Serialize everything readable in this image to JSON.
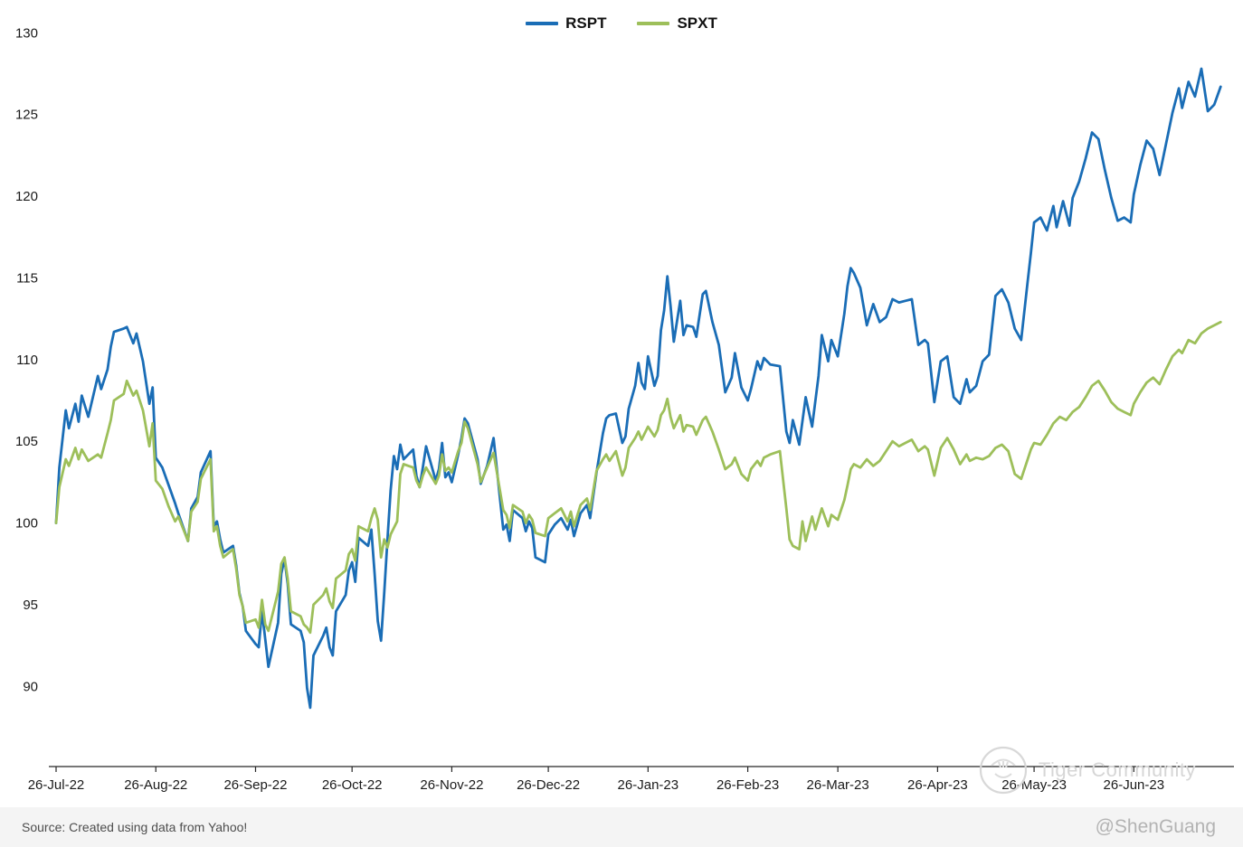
{
  "watermark": {
    "brand": "Tiger Community",
    "handle": "@ShenGuang"
  },
  "footer": {
    "source": "Source: Created using data from Yahoo!"
  },
  "chart_data": {
    "type": "line",
    "title": "",
    "xlabel": "",
    "ylabel": "",
    "grid": false,
    "legend_position": "top-center",
    "x_axis": {
      "unit": "days since 26-Jul-2022",
      "domain": [
        0,
        365
      ],
      "tick_days": [
        0,
        31,
        62,
        92,
        123,
        153,
        184,
        215,
        243,
        274,
        304,
        335
      ],
      "tick_labels": [
        "26-Jul-22",
        "26-Aug-22",
        "26-Sep-22",
        "26-Oct-22",
        "26-Nov-22",
        "26-Dec-22",
        "26-Jan-23",
        "26-Feb-23",
        "26-Mar-23",
        "26-Apr-23",
        "26-May-23",
        "26-Jun-23"
      ]
    },
    "y_axis": {
      "range": [
        85.1,
        130.9
      ],
      "ticks": [
        90,
        95,
        100,
        105,
        110,
        115,
        120,
        125,
        130
      ]
    },
    "series": [
      {
        "name": "RSPT",
        "color": "#1a6db6",
        "x": [
          0,
          1,
          3,
          4,
          6,
          7,
          8,
          10,
          13,
          14,
          16,
          17,
          18,
          21,
          22,
          24,
          25,
          27,
          29,
          30,
          31,
          33,
          35,
          37,
          38,
          41,
          42,
          44,
          45,
          48,
          49,
          50,
          51,
          52,
          55,
          56,
          57,
          58,
          59,
          62,
          63,
          64,
          65,
          66,
          69,
          70,
          71,
          72,
          73,
          76,
          77,
          78,
          79,
          80,
          83,
          84,
          85,
          86,
          87,
          90,
          91,
          92,
          93,
          94,
          97,
          98,
          99,
          100,
          101,
          102,
          103,
          104,
          105,
          106,
          107,
          108,
          111,
          112,
          113,
          114,
          115,
          118,
          119,
          120,
          121,
          122,
          123,
          125,
          126,
          127,
          128,
          131,
          132,
          134,
          136,
          139,
          140,
          141,
          142,
          145,
          146,
          147,
          148,
          149,
          152,
          153,
          155,
          157,
          159,
          160,
          161,
          163,
          165,
          166,
          168,
          170,
          171,
          172,
          174,
          176,
          177,
          178,
          180,
          181,
          182,
          183,
          184,
          186,
          187,
          188,
          189,
          190,
          191,
          192,
          194,
          195,
          196,
          198,
          199,
          201,
          202,
          204,
          206,
          208,
          210,
          211,
          213,
          215,
          216,
          218,
          219,
          220,
          222,
          225,
          227,
          228,
          229,
          231,
          233,
          235,
          237,
          238,
          240,
          241,
          243,
          245,
          246,
          247,
          248,
          250,
          252,
          254,
          256,
          258,
          260,
          262,
          264,
          266,
          268,
          270,
          271,
          273,
          275,
          277,
          279,
          281,
          283,
          284,
          286,
          288,
          290,
          292,
          294,
          296,
          298,
          300,
          302,
          303,
          304,
          306,
          308,
          310,
          311,
          313,
          315,
          316,
          318,
          320,
          322,
          324,
          326,
          328,
          330,
          332,
          334,
          335,
          337,
          339,
          341,
          343,
          345,
          347,
          349,
          350,
          352,
          354,
          356,
          358,
          360,
          362
        ],
        "values": [
          100.0,
          103.4,
          106.9,
          105.8,
          107.3,
          106.2,
          107.8,
          106.5,
          109.0,
          108.2,
          109.4,
          110.8,
          111.7,
          111.9,
          112.0,
          111.0,
          111.6,
          109.9,
          107.3,
          108.3,
          104.0,
          103.4,
          102.3,
          101.2,
          100.6,
          98.9,
          100.9,
          101.6,
          103.1,
          104.4,
          99.8,
          100.1,
          99.0,
          98.2,
          98.6,
          97.4,
          95.7,
          94.9,
          93.4,
          92.6,
          92.4,
          94.6,
          92.9,
          91.2,
          93.9,
          96.9,
          97.8,
          96.3,
          93.8,
          93.4,
          92.7,
          89.9,
          88.7,
          91.9,
          93.1,
          93.6,
          92.4,
          91.9,
          94.6,
          95.6,
          97.1,
          97.6,
          96.4,
          99.1,
          98.6,
          99.6,
          96.9,
          94.0,
          92.8,
          95.7,
          99.0,
          102.0,
          104.1,
          103.3,
          104.8,
          103.9,
          104.5,
          102.9,
          102.2,
          103.4,
          104.7,
          102.6,
          103.3,
          104.9,
          102.8,
          103.1,
          102.5,
          104.2,
          105.2,
          106.4,
          106.1,
          103.9,
          102.4,
          103.5,
          105.2,
          99.6,
          99.9,
          98.9,
          100.8,
          100.3,
          99.5,
          100.1,
          99.7,
          97.9,
          97.6,
          99.3,
          99.9,
          100.3,
          99.6,
          100.2,
          99.2,
          100.6,
          101.1,
          100.3,
          103.1,
          105.5,
          106.4,
          106.6,
          106.7,
          104.9,
          105.3,
          107.0,
          108.4,
          109.8,
          108.6,
          108.2,
          110.2,
          108.4,
          109.0,
          111.8,
          113.0,
          115.1,
          113.3,
          111.1,
          113.6,
          111.5,
          112.1,
          112.0,
          111.4,
          114.0,
          114.2,
          112.3,
          110.9,
          108.0,
          108.9,
          110.4,
          108.3,
          107.5,
          108.2,
          109.9,
          109.4,
          110.1,
          109.7,
          109.6,
          105.6,
          104.9,
          106.3,
          104.8,
          107.7,
          105.9,
          109.0,
          111.5,
          109.9,
          111.2,
          110.2,
          112.8,
          114.5,
          115.6,
          115.3,
          114.4,
          112.1,
          113.4,
          112.3,
          112.6,
          113.7,
          113.5,
          113.6,
          113.7,
          110.9,
          111.2,
          111.0,
          107.4,
          109.9,
          110.2,
          107.7,
          107.3,
          108.8,
          108.0,
          108.4,
          109.9,
          110.3,
          113.9,
          114.3,
          113.5,
          111.9,
          111.2,
          114.8,
          116.5,
          118.4,
          118.7,
          117.9,
          119.4,
          118.1,
          119.7,
          118.2,
          119.9,
          120.9,
          122.3,
          123.9,
          123.5,
          121.6,
          119.9,
          118.5,
          118.7,
          118.4,
          120.1,
          121.9,
          123.4,
          122.9,
          121.3,
          123.2,
          125.1,
          126.6,
          125.4,
          127.0,
          126.1,
          127.8,
          125.2,
          125.6,
          126.7
        ]
      },
      {
        "name": "SPXT",
        "color": "#9dbf5a",
        "x": [
          0,
          1,
          3,
          4,
          6,
          7,
          8,
          10,
          13,
          14,
          16,
          17,
          18,
          21,
          22,
          24,
          25,
          27,
          29,
          30,
          31,
          33,
          35,
          37,
          38,
          41,
          42,
          44,
          45,
          48,
          49,
          50,
          51,
          52,
          55,
          56,
          57,
          58,
          59,
          62,
          63,
          64,
          65,
          66,
          69,
          70,
          71,
          72,
          73,
          76,
          77,
          78,
          79,
          80,
          83,
          84,
          85,
          86,
          87,
          90,
          91,
          92,
          93,
          94,
          97,
          98,
          99,
          100,
          101,
          102,
          103,
          104,
          106,
          107,
          108,
          111,
          112,
          113,
          114,
          115,
          118,
          119,
          120,
          121,
          122,
          123,
          125,
          126,
          127,
          128,
          131,
          132,
          134,
          136,
          139,
          140,
          141,
          142,
          145,
          146,
          147,
          148,
          149,
          152,
          153,
          155,
          157,
          159,
          160,
          161,
          163,
          165,
          166,
          168,
          170,
          171,
          172,
          174,
          176,
          177,
          178,
          180,
          181,
          182,
          184,
          186,
          187,
          188,
          189,
          190,
          191,
          192,
          194,
          195,
          196,
          198,
          199,
          201,
          202,
          204,
          206,
          208,
          210,
          211,
          213,
          215,
          216,
          218,
          219,
          220,
          222,
          225,
          227,
          228,
          229,
          231,
          232,
          233,
          235,
          236,
          238,
          240,
          241,
          243,
          245,
          246,
          247,
          248,
          250,
          252,
          254,
          256,
          258,
          260,
          262,
          264,
          266,
          268,
          270,
          271,
          273,
          275,
          277,
          279,
          281,
          283,
          284,
          286,
          288,
          290,
          292,
          294,
          296,
          298,
          300,
          302,
          303,
          304,
          306,
          308,
          310,
          312,
          314,
          316,
          318,
          320,
          322,
          324,
          326,
          328,
          330,
          332,
          334,
          335,
          337,
          339,
          341,
          343,
          345,
          347,
          349,
          350,
          352,
          354,
          356,
          358,
          360,
          362
        ],
        "values": [
          100.0,
          102.2,
          103.9,
          103.5,
          104.6,
          103.9,
          104.5,
          103.8,
          104.2,
          104.0,
          105.5,
          106.3,
          107.5,
          107.9,
          108.7,
          107.8,
          108.1,
          106.9,
          104.7,
          106.1,
          102.6,
          102.1,
          101.0,
          100.1,
          100.4,
          98.9,
          100.7,
          101.3,
          102.7,
          103.9,
          99.5,
          99.8,
          98.6,
          97.9,
          98.4,
          97.2,
          95.6,
          94.9,
          93.9,
          94.1,
          93.6,
          95.3,
          93.8,
          93.4,
          95.8,
          97.5,
          97.9,
          96.6,
          94.6,
          94.3,
          93.8,
          93.6,
          93.3,
          95.0,
          95.6,
          96.0,
          95.2,
          94.8,
          96.6,
          97.1,
          98.1,
          98.4,
          97.7,
          99.8,
          99.5,
          100.3,
          100.9,
          100.2,
          97.9,
          99.0,
          98.5,
          99.3,
          100.1,
          103.0,
          103.6,
          103.4,
          102.6,
          102.2,
          102.9,
          103.4,
          102.4,
          102.9,
          104.2,
          103.2,
          103.4,
          103.1,
          104.4,
          104.9,
          106.2,
          105.8,
          103.6,
          102.5,
          103.4,
          104.3,
          100.8,
          100.5,
          99.7,
          101.1,
          100.7,
          100.0,
          100.5,
          100.2,
          99.4,
          99.2,
          100.3,
          100.6,
          100.9,
          100.1,
          100.7,
          99.8,
          101.1,
          101.5,
          100.8,
          103.2,
          103.9,
          104.2,
          103.8,
          104.4,
          102.9,
          103.4,
          104.6,
          105.2,
          105.6,
          105.1,
          105.9,
          105.3,
          105.7,
          106.6,
          106.9,
          107.6,
          106.5,
          105.8,
          106.6,
          105.6,
          106.0,
          105.9,
          105.4,
          106.3,
          106.5,
          105.6,
          104.5,
          103.3,
          103.6,
          104.0,
          103.0,
          102.6,
          103.3,
          103.8,
          103.5,
          104.0,
          104.2,
          104.4,
          100.9,
          99.0,
          98.6,
          98.4,
          100.1,
          98.9,
          100.4,
          99.6,
          100.9,
          99.8,
          100.5,
          100.2,
          101.4,
          102.3,
          103.3,
          103.6,
          103.4,
          103.9,
          103.5,
          103.8,
          104.4,
          105.0,
          104.7,
          104.9,
          105.1,
          104.4,
          104.7,
          104.5,
          102.9,
          104.6,
          105.2,
          104.5,
          103.6,
          104.2,
          103.8,
          104.0,
          103.9,
          104.1,
          104.6,
          104.8,
          104.4,
          103.0,
          102.7,
          103.9,
          104.5,
          104.9,
          104.8,
          105.4,
          106.1,
          106.5,
          106.3,
          106.8,
          107.1,
          107.7,
          108.4,
          108.7,
          108.1,
          107.4,
          107.0,
          106.8,
          106.6,
          107.3,
          108.0,
          108.6,
          108.9,
          108.5,
          109.4,
          110.2,
          110.6,
          110.4,
          111.2,
          111.0,
          111.6,
          111.9,
          112.1,
          112.3
        ]
      }
    ]
  }
}
